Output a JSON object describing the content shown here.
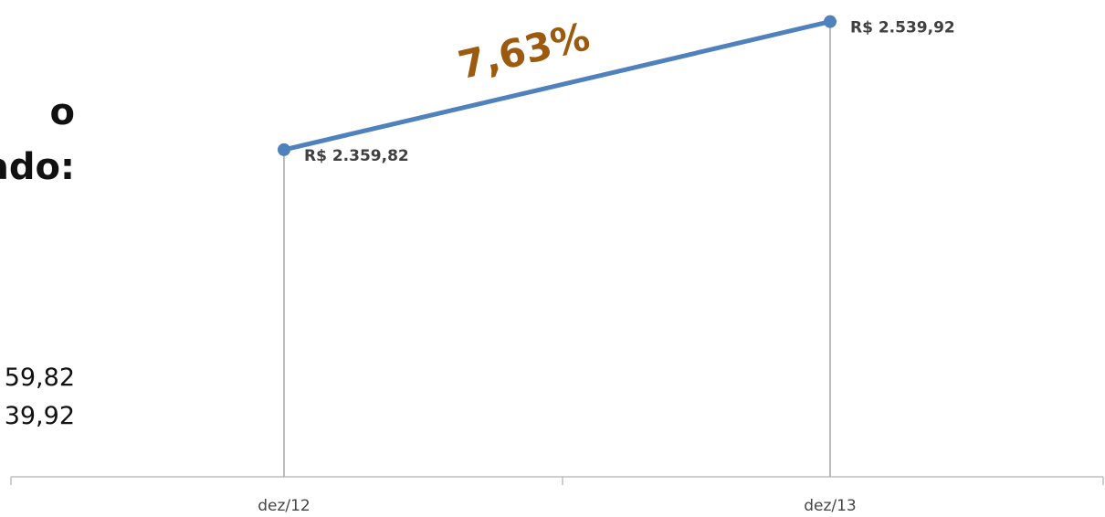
{
  "side_text": {
    "heading_lines": [
      "o",
      "ado:"
    ],
    "values": [
      "59,82",
      "39,92"
    ]
  },
  "chart_data": {
    "type": "line",
    "categories": [
      "dez/12",
      "dez/13"
    ],
    "series": [
      {
        "values": [
          2359.82,
          2539.92
        ],
        "data_labels": [
          "R$ 2.359,82",
          "R$ 2.539,92"
        ]
      }
    ],
    "ylim": [
      1900,
      2560
    ],
    "annotation": "7,63%",
    "colors": {
      "line": "#4f81bd",
      "annotation": "#9c5a0f",
      "axis": "#bfbfbf",
      "drop_line": "#a6a6a6"
    },
    "grid": false,
    "legend": "none"
  }
}
